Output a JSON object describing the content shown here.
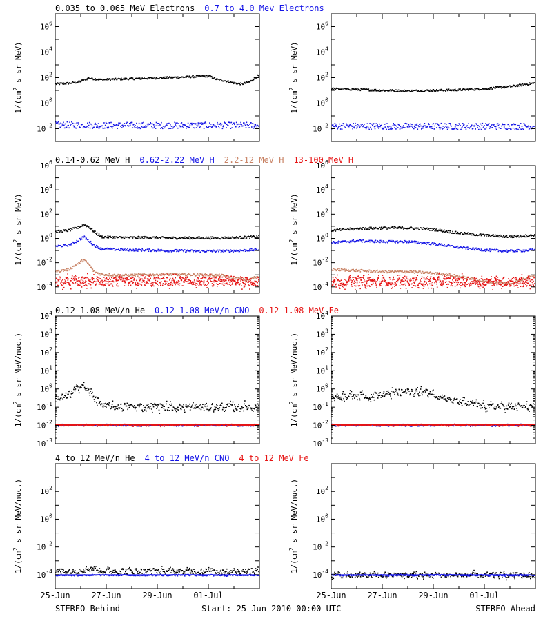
{
  "colors": {
    "black": "#000000",
    "blue": "#1414e6",
    "tan": "#c88264",
    "red": "#e61414",
    "axis": "#000000"
  },
  "footer": {
    "left": "STEREO Behind",
    "center": "Start: 25-Jun-2010 00:00 UTC",
    "right": "STEREO Ahead"
  },
  "chart_data": [
    {
      "type": "scatter",
      "title": "",
      "ylabel_main": "1/(cm",
      "ylabel_sup": "2",
      "ylabel_rest": " s sr MeV)",
      "yscale": "log",
      "ylim": [
        0.001,
        10000000
      ],
      "yticks": [
        {
          "base": "10",
          "exp": "-2",
          "v": 0.01
        },
        {
          "base": "10",
          "exp": "0",
          "v": 1
        },
        {
          "base": "10",
          "exp": "2",
          "v": 100
        },
        {
          "base": "10",
          "exp": "4",
          "v": 10000
        },
        {
          "base": "10",
          "exp": "6",
          "v": 1000000
        }
      ],
      "legend": [
        {
          "label": "0.035 to 0.065 MeV Electrons",
          "color": "#000000"
        },
        {
          "label": "0.7 to 4.0 Mev Electrons",
          "color": "#1414e6"
        }
      ],
      "xticks": [
        "25-Jun",
        "27-Jun",
        "29-Jun",
        "01-Jul"
      ],
      "show_xtick_labels": false,
      "behind": [
        {
          "name": "",
          "color": "#000000",
          "x": [
            0,
            0.5,
            0.9,
            1.3,
            1.8,
            2.5,
            3,
            4,
            5,
            5.6,
            6,
            6.3,
            6.6,
            7,
            7.3,
            7.6,
            7.9
          ],
          "y": [
            35,
            40,
            50,
            100,
            75,
            85,
            90,
            105,
            120,
            140,
            150,
            80,
            65,
            40,
            35,
            50,
            150
          ]
        },
        {
          "name": "",
          "color": "#1414e6",
          "x": [
            0,
            2,
            4,
            6,
            7.9
          ],
          "y": [
            0.022,
            0.02,
            0.02,
            0.02,
            0.02
          ]
        }
      ],
      "ahead": [
        {
          "name": "",
          "color": "#000000",
          "x": [
            0,
            1,
            2,
            3,
            4,
            5,
            6,
            7,
            7.9
          ],
          "y": [
            15,
            13,
            11,
            10,
            11,
            12,
            15,
            22,
            40
          ]
        },
        {
          "name": "",
          "color": "#1414e6",
          "x": [
            0,
            2,
            4,
            6,
            7.9
          ],
          "y": [
            0.018,
            0.017,
            0.017,
            0.017,
            0.017
          ]
        }
      ]
    },
    {
      "type": "scatter",
      "title": "",
      "ylabel_main": "1/(cm",
      "ylabel_sup": "2",
      "ylabel_rest": " s sr MeV)",
      "yscale": "log",
      "ylim": [
        3e-05,
        1000000
      ],
      "yticks": [
        {
          "base": "10",
          "exp": "-4",
          "v": 0.0001
        },
        {
          "base": "10",
          "exp": "-2",
          "v": 0.01
        },
        {
          "base": "10",
          "exp": "0",
          "v": 1
        },
        {
          "base": "10",
          "exp": "2",
          "v": 100
        },
        {
          "base": "10",
          "exp": "4",
          "v": 10000
        },
        {
          "base": "10",
          "exp": "6",
          "v": 1000000
        }
      ],
      "legend": [
        {
          "label": "0.14-0.62 MeV H",
          "color": "#000000"
        },
        {
          "label": "0.62-2.22 MeV H",
          "color": "#1414e6"
        },
        {
          "label": "2.2-12 MeV H",
          "color": "#c88264"
        },
        {
          "label": "13-100 MeV H",
          "color": "#e61414"
        }
      ],
      "xticks": [
        "25-Jun",
        "27-Jun",
        "29-Jun",
        "01-Jul"
      ],
      "show_xtick_labels": false,
      "behind": [
        {
          "name": "",
          "color": "#000000",
          "x": [
            0,
            0.5,
            0.9,
            1.1,
            1.3,
            1.5,
            1.8,
            2.5,
            3.5,
            4.5,
            5.5,
            6.5,
            7.2,
            7.9
          ],
          "y": [
            4,
            5,
            9,
            15,
            10,
            4,
            1.5,
            1.3,
            1.3,
            1.2,
            1.2,
            1.2,
            1.3,
            1.5
          ]
        },
        {
          "name": "",
          "color": "#1414e6",
          "x": [
            0,
            0.5,
            0.9,
            1.1,
            1.3,
            1.5,
            1.8,
            2.5,
            3.5,
            4.5,
            5.5,
            6.5,
            7.2,
            7.9
          ],
          "y": [
            0.25,
            0.3,
            0.8,
            1.5,
            0.7,
            0.3,
            0.15,
            0.13,
            0.12,
            0.11,
            0.1,
            0.1,
            0.11,
            0.13
          ]
        },
        {
          "name": "",
          "color": "#c88264",
          "x": [
            0,
            0.5,
            0.9,
            1.1,
            1.3,
            1.5,
            1.8,
            2.5,
            3.5,
            4.5,
            5.5,
            6.5,
            7,
            7.5,
            7.9
          ],
          "y": [
            0.002,
            0.003,
            0.01,
            0.02,
            0.008,
            0.002,
            0.0012,
            0.001,
            0.0011,
            0.0012,
            0.0011,
            0.001,
            0.0006,
            0.0004,
            0.0008
          ]
        },
        {
          "name": "",
          "color": "#e61414",
          "x": [
            0,
            2,
            4,
            6,
            7.9
          ],
          "y": [
            0.0003,
            0.0003,
            0.0003,
            0.0003,
            0.0003
          ]
        }
      ],
      "ahead": [
        {
          "name": "",
          "color": "#000000",
          "x": [
            0,
            1,
            2,
            3,
            4,
            5,
            6,
            7,
            7.9
          ],
          "y": [
            5,
            7,
            8,
            8,
            6,
            3,
            2,
            1.5,
            2
          ]
        },
        {
          "name": "",
          "color": "#1414e6",
          "x": [
            0,
            1,
            2,
            3,
            4,
            5,
            6,
            7,
            7.9
          ],
          "y": [
            0.5,
            0.7,
            0.6,
            0.6,
            0.4,
            0.2,
            0.12,
            0.1,
            0.12
          ]
        },
        {
          "name": "",
          "color": "#c88264",
          "x": [
            0,
            1,
            2,
            3,
            4,
            4.5,
            5,
            5.5,
            6,
            7,
            7.5,
            7.9
          ],
          "y": [
            0.003,
            0.0025,
            0.002,
            0.002,
            0.0015,
            0.0012,
            0.0008,
            0.0005,
            0.0003,
            0.0002,
            0.0005,
            0.001
          ]
        },
        {
          "name": "",
          "color": "#e61414",
          "x": [
            0,
            2,
            4,
            6,
            7.9
          ],
          "y": [
            0.0003,
            0.0003,
            0.0003,
            0.0003,
            0.0003
          ]
        }
      ]
    },
    {
      "type": "scatter",
      "title": "",
      "ylabel_main": "1/(cm",
      "ylabel_sup": "2",
      "ylabel_rest": " s sr MeV/nuc.)",
      "yscale": "log",
      "ylim": [
        0.001,
        10000
      ],
      "yticks": [
        {
          "base": "10",
          "exp": "-3",
          "v": 0.001
        },
        {
          "base": "10",
          "exp": "-2",
          "v": 0.01
        },
        {
          "base": "10",
          "exp": "-1",
          "v": 0.1
        },
        {
          "base": "10",
          "exp": "0",
          "v": 1
        },
        {
          "base": "10",
          "exp": "1",
          "v": 10
        },
        {
          "base": "10",
          "exp": "2",
          "v": 100
        },
        {
          "base": "10",
          "exp": "3",
          "v": 1000
        },
        {
          "base": "10",
          "exp": "4",
          "v": 10000
        }
      ],
      "legend": [
        {
          "label": "0.12-1.08 MeV/n He",
          "color": "#000000"
        },
        {
          "label": "0.12-1.08 MeV/n CNO",
          "color": "#1414e6"
        },
        {
          "label": "0.12-1.08 MeV Fe",
          "color": "#e61414"
        }
      ],
      "xticks": [
        "25-Jun",
        "27-Jun",
        "29-Jun",
        "01-Jul"
      ],
      "show_xtick_labels": false,
      "behind": [
        {
          "name": "",
          "color": "#000000",
          "x": [
            0,
            0.4,
            0.8,
            1.0,
            1.2,
            1.5,
            1.8,
            2.5,
            4,
            5.5,
            7,
            7.9
          ],
          "y": [
            0.3,
            0.4,
            1.0,
            2.0,
            1.0,
            0.4,
            0.12,
            0.11,
            0.11,
            0.11,
            0.11,
            0.11
          ]
        },
        {
          "name": "",
          "color": "#1414e6",
          "x": [
            0,
            2,
            4,
            6,
            7.9
          ],
          "y": [
            0.011,
            0.011,
            0.011,
            0.011,
            0.011
          ]
        },
        {
          "name": "",
          "color": "#e61414",
          "x": [
            0,
            2,
            4,
            6,
            7.9
          ],
          "y": [
            0.011,
            0.011,
            0.011,
            0.011,
            0.011
          ]
        }
      ],
      "ahead": [
        {
          "name": "",
          "color": "#000000",
          "x": [
            0,
            0.8,
            1.5,
            2.2,
            2.8,
            3.4,
            4,
            4.5,
            5,
            6,
            7,
            7.9
          ],
          "y": [
            0.4,
            0.5,
            0.45,
            0.6,
            0.7,
            0.8,
            0.6,
            0.3,
            0.2,
            0.12,
            0.11,
            0.11
          ]
        },
        {
          "name": "",
          "color": "#1414e6",
          "x": [
            0,
            2,
            4,
            6,
            7.9
          ],
          "y": [
            0.011,
            0.011,
            0.011,
            0.011,
            0.011
          ]
        },
        {
          "name": "",
          "color": "#e61414",
          "x": [
            0,
            2,
            4,
            6,
            7.9
          ],
          "y": [
            0.011,
            0.011,
            0.011,
            0.011,
            0.011
          ]
        }
      ]
    },
    {
      "type": "scatter",
      "title": "",
      "ylabel_main": "1/(cm",
      "ylabel_sup": "2",
      "ylabel_rest": " s sr MeV/nuc.)",
      "yscale": "log",
      "ylim": [
        1e-05,
        10000
      ],
      "yticks": [
        {
          "base": "10",
          "exp": "-4",
          "v": 0.0001
        },
        {
          "base": "10",
          "exp": "-2",
          "v": 0.01
        },
        {
          "base": "10",
          "exp": "0",
          "v": 1
        },
        {
          "base": "10",
          "exp": "2",
          "v": 100
        }
      ],
      "legend": [
        {
          "label": "4 to 12 MeV/n He",
          "color": "#000000"
        },
        {
          "label": "4 to 12 MeV/n CNO",
          "color": "#1414e6"
        },
        {
          "label": "4 to 12 MeV Fe",
          "color": "#e61414"
        }
      ],
      "xticks": [
        "25-Jun",
        "27-Jun",
        "29-Jun",
        "01-Jul"
      ],
      "show_xtick_labels": true,
      "behind": [
        {
          "name": "",
          "color": "#000000",
          "x": [
            0,
            0.8,
            1.2,
            1.5,
            2,
            3,
            4,
            5,
            6,
            7,
            7.9
          ],
          "y": [
            0.0002,
            0.0002,
            0.0003,
            0.0003,
            0.0002,
            0.0002,
            0.0002,
            0.0002,
            0.0002,
            0.0002,
            0.0002
          ]
        },
        {
          "name": "",
          "color": "#1414e6",
          "x": [
            0,
            2,
            4,
            6,
            7.9
          ],
          "y": [
            0.0001,
            0.0001,
            0.0001,
            0.0001,
            0.0001
          ]
        }
      ],
      "ahead": [
        {
          "name": "",
          "color": "#000000",
          "x": [
            0,
            2,
            4,
            6,
            7.9
          ],
          "y": [
            0.0001,
            0.0001,
            0.0001,
            0.0001,
            0.0001
          ]
        },
        {
          "name": "",
          "color": "#1414e6",
          "x": [
            0,
            2,
            4,
            6,
            7.9
          ],
          "y": [
            0.0001,
            0.0001,
            0.0001,
            0.0001,
            0.0001
          ]
        }
      ]
    }
  ]
}
